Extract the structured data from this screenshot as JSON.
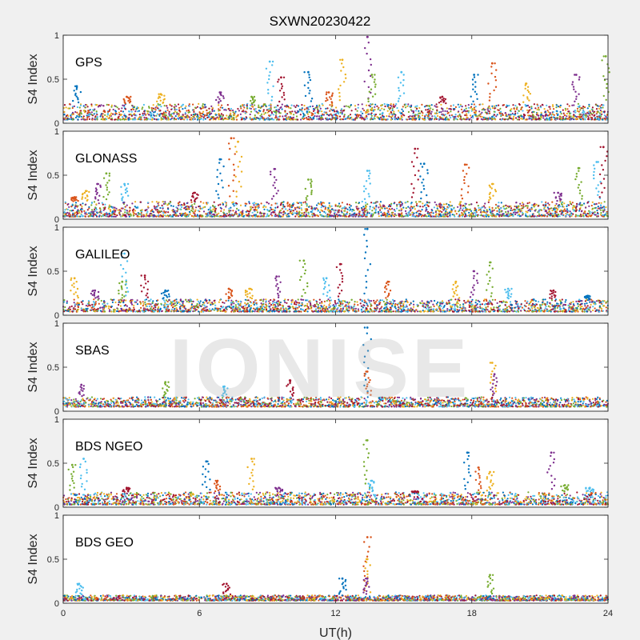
{
  "figure": {
    "title": "SXWN20230422",
    "watermark": "IONISE",
    "xlabel": "UT(h)",
    "ylabel": "S4 Index",
    "xticks": [
      "0",
      "6",
      "12",
      "18",
      "24"
    ],
    "yticks": [
      "0",
      "0.5",
      "1"
    ]
  },
  "colors": [
    "#0072BD",
    "#D95319",
    "#EDB120",
    "#7E2F8E",
    "#77AC30",
    "#4DBEEE",
    "#A2142F"
  ],
  "chart_data": [
    {
      "type": "scatter",
      "label": "GPS",
      "xlim": [
        0,
        24
      ],
      "ylim": [
        0,
        1
      ],
      "baseline": [
        0.04,
        0.22
      ],
      "spikes": [
        {
          "x": 0.6,
          "y": 0.42
        },
        {
          "x": 2.8,
          "y": 0.3
        },
        {
          "x": 4.3,
          "y": 0.33
        },
        {
          "x": 6.9,
          "y": 0.35
        },
        {
          "x": 8.3,
          "y": 0.3
        },
        {
          "x": 9.1,
          "y": 0.7
        },
        {
          "x": 9.6,
          "y": 0.52
        },
        {
          "x": 10.8,
          "y": 0.58
        },
        {
          "x": 11.7,
          "y": 0.35
        },
        {
          "x": 12.3,
          "y": 0.72
        },
        {
          "x": 13.4,
          "y": 0.98
        },
        {
          "x": 13.6,
          "y": 0.55
        },
        {
          "x": 14.9,
          "y": 0.58
        },
        {
          "x": 16.7,
          "y": 0.3
        },
        {
          "x": 18.1,
          "y": 0.55
        },
        {
          "x": 18.9,
          "y": 0.68
        },
        {
          "x": 20.4,
          "y": 0.45
        },
        {
          "x": 22.6,
          "y": 0.55
        },
        {
          "x": 23.9,
          "y": 0.76
        }
      ]
    },
    {
      "type": "scatter",
      "label": "GLONASS",
      "xlim": [
        0,
        24
      ],
      "ylim": [
        0,
        1
      ],
      "baseline": [
        0.03,
        0.2
      ],
      "spikes": [
        {
          "x": 0.5,
          "y": 0.25
        },
        {
          "x": 1.0,
          "y": 0.32
        },
        {
          "x": 1.5,
          "y": 0.4
        },
        {
          "x": 1.9,
          "y": 0.52
        },
        {
          "x": 2.7,
          "y": 0.4
        },
        {
          "x": 5.8,
          "y": 0.3
        },
        {
          "x": 6.9,
          "y": 0.68
        },
        {
          "x": 7.4,
          "y": 0.92
        },
        {
          "x": 7.7,
          "y": 0.88
        },
        {
          "x": 9.3,
          "y": 0.57
        },
        {
          "x": 10.8,
          "y": 0.45
        },
        {
          "x": 13.4,
          "y": 0.55
        },
        {
          "x": 15.5,
          "y": 0.8
        },
        {
          "x": 15.9,
          "y": 0.63
        },
        {
          "x": 17.7,
          "y": 0.62
        },
        {
          "x": 18.9,
          "y": 0.4
        },
        {
          "x": 21.8,
          "y": 0.3
        },
        {
          "x": 22.7,
          "y": 0.58
        },
        {
          "x": 23.5,
          "y": 0.65
        },
        {
          "x": 23.8,
          "y": 0.82
        }
      ]
    },
    {
      "type": "scatter",
      "label": "GALILEO",
      "xlim": [
        0,
        24
      ],
      "ylim": [
        0,
        1
      ],
      "baseline": [
        0.04,
        0.18
      ],
      "spikes": [
        {
          "x": 0.5,
          "y": 0.42
        },
        {
          "x": 1.4,
          "y": 0.28
        },
        {
          "x": 2.6,
          "y": 0.38
        },
        {
          "x": 2.7,
          "y": 0.7
        },
        {
          "x": 3.6,
          "y": 0.45
        },
        {
          "x": 4.5,
          "y": 0.28
        },
        {
          "x": 7.3,
          "y": 0.3
        },
        {
          "x": 8.2,
          "y": 0.3
        },
        {
          "x": 9.4,
          "y": 0.44
        },
        {
          "x": 10.6,
          "y": 0.62
        },
        {
          "x": 11.6,
          "y": 0.42
        },
        {
          "x": 12.2,
          "y": 0.58
        },
        {
          "x": 13.4,
          "y": 0.98
        },
        {
          "x": 14.3,
          "y": 0.38
        },
        {
          "x": 17.3,
          "y": 0.38
        },
        {
          "x": 18.1,
          "y": 0.5
        },
        {
          "x": 18.8,
          "y": 0.6
        },
        {
          "x": 19.6,
          "y": 0.3
        },
        {
          "x": 21.6,
          "y": 0.28
        },
        {
          "x": 23.1,
          "y": 0.22
        }
      ]
    },
    {
      "type": "scatter",
      "label": "SBAS",
      "xlim": [
        0,
        24
      ],
      "ylim": [
        0,
        1
      ],
      "baseline": [
        0.05,
        0.16
      ],
      "spikes": [
        {
          "x": 0.8,
          "y": 0.3
        },
        {
          "x": 4.5,
          "y": 0.33
        },
        {
          "x": 7.1,
          "y": 0.28
        },
        {
          "x": 10.0,
          "y": 0.35
        },
        {
          "x": 13.4,
          "y": 0.95
        },
        {
          "x": 13.4,
          "y": 0.45
        },
        {
          "x": 18.9,
          "y": 0.55
        },
        {
          "x": 19.0,
          "y": 0.42
        }
      ]
    },
    {
      "type": "scatter",
      "label": "BDS NGEO",
      "xlim": [
        0,
        24
      ],
      "ylim": [
        0,
        1
      ],
      "baseline": [
        0.03,
        0.17
      ],
      "spikes": [
        {
          "x": 0.4,
          "y": 0.48
        },
        {
          "x": 0.9,
          "y": 0.55
        },
        {
          "x": 2.8,
          "y": 0.22
        },
        {
          "x": 6.3,
          "y": 0.52
        },
        {
          "x": 6.8,
          "y": 0.3
        },
        {
          "x": 8.3,
          "y": 0.55
        },
        {
          "x": 9.5,
          "y": 0.22
        },
        {
          "x": 13.4,
          "y": 0.76
        },
        {
          "x": 13.6,
          "y": 0.3
        },
        {
          "x": 15.5,
          "y": 0.18
        },
        {
          "x": 17.8,
          "y": 0.62
        },
        {
          "x": 18.3,
          "y": 0.45
        },
        {
          "x": 18.8,
          "y": 0.4
        },
        {
          "x": 21.5,
          "y": 0.62
        },
        {
          "x": 22.1,
          "y": 0.25
        },
        {
          "x": 23.2,
          "y": 0.22
        }
      ]
    },
    {
      "type": "scatter",
      "label": "BDS GEO",
      "xlim": [
        0,
        24
      ],
      "ylim": [
        0,
        1
      ],
      "baseline": [
        0.03,
        0.09
      ],
      "spikes": [
        {
          "x": 0.7,
          "y": 0.22
        },
        {
          "x": 7.2,
          "y": 0.22
        },
        {
          "x": 12.3,
          "y": 0.28
        },
        {
          "x": 13.4,
          "y": 0.75
        },
        {
          "x": 13.4,
          "y": 0.5
        },
        {
          "x": 13.4,
          "y": 0.28
        },
        {
          "x": 18.8,
          "y": 0.32
        }
      ]
    }
  ]
}
